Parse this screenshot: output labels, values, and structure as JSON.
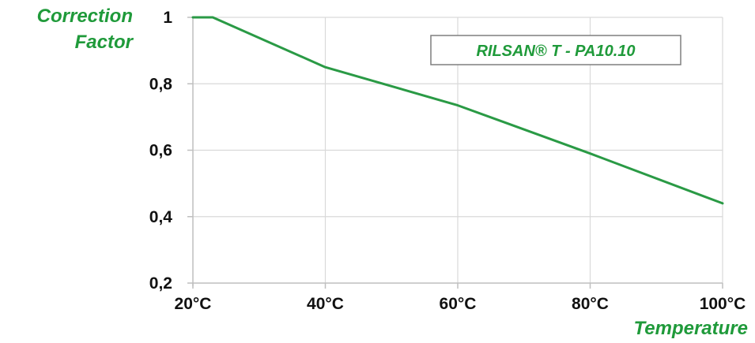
{
  "chart_data": {
    "type": "line",
    "title": "",
    "ylabel_lines": [
      "Correction",
      "Factor"
    ],
    "xlabel": "Temperature",
    "x_unit": "°C",
    "x_ticks": [
      20,
      40,
      60,
      80,
      100
    ],
    "x_tick_labels": [
      "20°C",
      "40°C",
      "60°C",
      "80°C",
      "100°C"
    ],
    "y_ticks": [
      0.2,
      0.4,
      0.6,
      0.8,
      1.0
    ],
    "y_tick_labels": [
      "0,2",
      "0,4",
      "0,6",
      "0,8",
      "1"
    ],
    "xlim": [
      20,
      100
    ],
    "ylim": [
      0.2,
      1.0
    ],
    "grid": true,
    "legend_position": "top-right",
    "series": [
      {
        "name": "RILSAN® T - PA10.10",
        "color": "#2a9a45",
        "x": [
          20,
          23,
          40,
          60,
          80,
          100
        ],
        "y": [
          1.0,
          1.0,
          0.85,
          0.735,
          0.59,
          0.44
        ]
      }
    ]
  },
  "colors": {
    "accent": "#1f9a3a",
    "grid": "#d9d9d9",
    "axis": "#bfbfbf"
  }
}
